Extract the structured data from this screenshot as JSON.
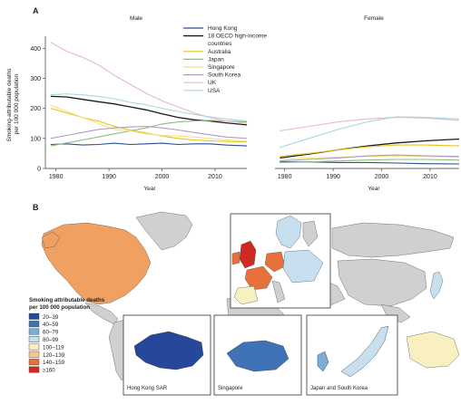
{
  "figure": {
    "panel_a_label": "A",
    "panel_b_label": "B"
  },
  "chart_data": [
    {
      "type": "line",
      "title": "Male",
      "xlabel": "Year",
      "ylabel": "Smoking-attributable deaths per 100 000 population",
      "xlim": [
        1978,
        2016
      ],
      "ylim": [
        0,
        440
      ],
      "xticks": [
        "1980",
        "1990",
        "2000",
        "2010"
      ],
      "yticks": [
        "0",
        "100",
        "200",
        "300",
        "400"
      ],
      "series": [
        {
          "name": "Hong Kong",
          "color": "#2a4d8f",
          "x": [
            1979,
            1982,
            1985,
            1988,
            1991,
            1994,
            1997,
            2000,
            2003,
            2006,
            2009,
            2012,
            2016
          ],
          "y": [
            80,
            82,
            78,
            80,
            84,
            80,
            82,
            84,
            80,
            82,
            82,
            78,
            75
          ]
        },
        {
          "name": "18 OECD high-income countries",
          "color": "#1a1a1a",
          "x": [
            1979,
            1982,
            1985,
            1988,
            1991,
            1994,
            1997,
            2000,
            2003,
            2006,
            2009,
            2012,
            2016
          ],
          "y": [
            240,
            238,
            230,
            222,
            215,
            205,
            195,
            182,
            170,
            162,
            158,
            152,
            145
          ]
        },
        {
          "name": "Australia",
          "color": "#e8c21c",
          "x": [
            1979,
            1982,
            1985,
            1988,
            1991,
            1994,
            1997,
            2000,
            2003,
            2006,
            2009,
            2012,
            2016
          ],
          "y": [
            200,
            185,
            170,
            158,
            140,
            128,
            118,
            108,
            100,
            95,
            92,
            90,
            88
          ]
        },
        {
          "name": "Japan",
          "color": "#8cbf7a",
          "x": [
            1979,
            1982,
            1985,
            1988,
            1991,
            1994,
            1997,
            2000,
            2003,
            2006,
            2009,
            2012,
            2016
          ],
          "y": [
            75,
            85,
            95,
            105,
            115,
            125,
            135,
            148,
            155,
            158,
            160,
            158,
            155
          ]
        },
        {
          "name": "Singapore",
          "color": "#f4e37a",
          "x": [
            1979,
            1982,
            1985,
            1988,
            1991,
            1994,
            1997,
            2000,
            2003,
            2006,
            2009,
            2012,
            2016
          ],
          "y": [
            210,
            190,
            170,
            150,
            130,
            125,
            115,
            110,
            108,
            105,
            100,
            95,
            92
          ]
        },
        {
          "name": "South Korea",
          "color": "#b09ac8",
          "x": [
            1979,
            1982,
            1985,
            1988,
            1991,
            1994,
            1997,
            2000,
            2003,
            2006,
            2009,
            2012,
            2016
          ],
          "y": [
            100,
            110,
            120,
            130,
            135,
            138,
            140,
            135,
            128,
            120,
            112,
            105,
            100
          ]
        },
        {
          "name": "UK",
          "color": "#e8b8c8",
          "x": [
            1979,
            1982,
            1985,
            1988,
            1991,
            1994,
            1997,
            2000,
            2003,
            2006,
            2009,
            2012,
            2016
          ],
          "y": [
            420,
            390,
            370,
            345,
            310,
            280,
            250,
            225,
            205,
            185,
            170,
            158,
            150
          ]
        },
        {
          "name": "USA",
          "color": "#a8d8e0",
          "x": [
            1979,
            1982,
            1985,
            1988,
            1991,
            1994,
            1997,
            2000,
            2003,
            2006,
            2009,
            2012,
            2016
          ],
          "y": [
            245,
            248,
            245,
            240,
            232,
            220,
            212,
            200,
            190,
            180,
            172,
            165,
            158
          ]
        }
      ]
    },
    {
      "type": "line",
      "title": "Female",
      "xlabel": "Year",
      "xlim": [
        1978,
        2016
      ],
      "ylim": [
        0,
        440
      ],
      "xticks": [
        "1980",
        "1990",
        "2000",
        "2010"
      ],
      "series": [
        {
          "name": "Hong Kong",
          "color": "#2a4d8f",
          "x": [
            1979,
            1985,
            1991,
            1997,
            2003,
            2009,
            2016
          ],
          "y": [
            22,
            22,
            20,
            20,
            18,
            16,
            15
          ]
        },
        {
          "name": "18 OECD high-income countries",
          "color": "#1a1a1a",
          "x": [
            1979,
            1985,
            1991,
            1997,
            2003,
            2009,
            2016
          ],
          "y": [
            35,
            48,
            62,
            75,
            85,
            92,
            98
          ]
        },
        {
          "name": "Australia",
          "color": "#e8c21c",
          "x": [
            1979,
            1985,
            1991,
            1997,
            2003,
            2009,
            2016
          ],
          "y": [
            40,
            50,
            62,
            72,
            78,
            78,
            75
          ]
        },
        {
          "name": "Japan",
          "color": "#8cbf7a",
          "x": [
            1979,
            1985,
            1991,
            1997,
            2003,
            2009,
            2016
          ],
          "y": [
            20,
            22,
            25,
            28,
            30,
            30,
            28
          ]
        },
        {
          "name": "Singapore",
          "color": "#f4e37a",
          "x": [
            1979,
            1985,
            1991,
            1997,
            2003,
            2009,
            2016
          ],
          "y": [
            30,
            35,
            38,
            40,
            42,
            40,
            38
          ]
        },
        {
          "name": "South Korea",
          "color": "#b09ac8",
          "x": [
            1979,
            1985,
            1991,
            1997,
            2003,
            2009,
            2016
          ],
          "y": [
            25,
            30,
            35,
            42,
            45,
            42,
            40
          ]
        },
        {
          "name": "UK",
          "color": "#e8b8c8",
          "x": [
            1979,
            1985,
            1991,
            1997,
            2003,
            2009,
            2016
          ],
          "y": [
            125,
            140,
            155,
            165,
            170,
            168,
            160
          ]
        },
        {
          "name": "USA",
          "color": "#a8d8e0",
          "x": [
            1979,
            1985,
            1991,
            1997,
            2003,
            2009,
            2016
          ],
          "y": [
            70,
            100,
            130,
            155,
            172,
            170,
            165
          ]
        }
      ]
    }
  ],
  "map": {
    "scale_title_line1": "Smoking attributable deaths",
    "scale_title_line2": "per 100 000 population",
    "scale": [
      {
        "label": "20–39",
        "color": "#27489a"
      },
      {
        "label": "40–59",
        "color": "#3f73b6"
      },
      {
        "label": "60–79",
        "color": "#7aaed8"
      },
      {
        "label": "80–99",
        "color": "#c8dff0"
      },
      {
        "label": "100–119",
        "color": "#f8f0c0"
      },
      {
        "label": "120–139",
        "color": "#f5c890"
      },
      {
        "label": "140–159",
        "color": "#e8703a"
      },
      {
        "label": "≥160",
        "color": "#cc2a22"
      }
    ],
    "no_data_color": "#d0d0d0",
    "insets": [
      {
        "label": "Hong Kong SAR"
      },
      {
        "label": "Singapore"
      },
      {
        "label": "Japan and South Korea"
      }
    ]
  }
}
